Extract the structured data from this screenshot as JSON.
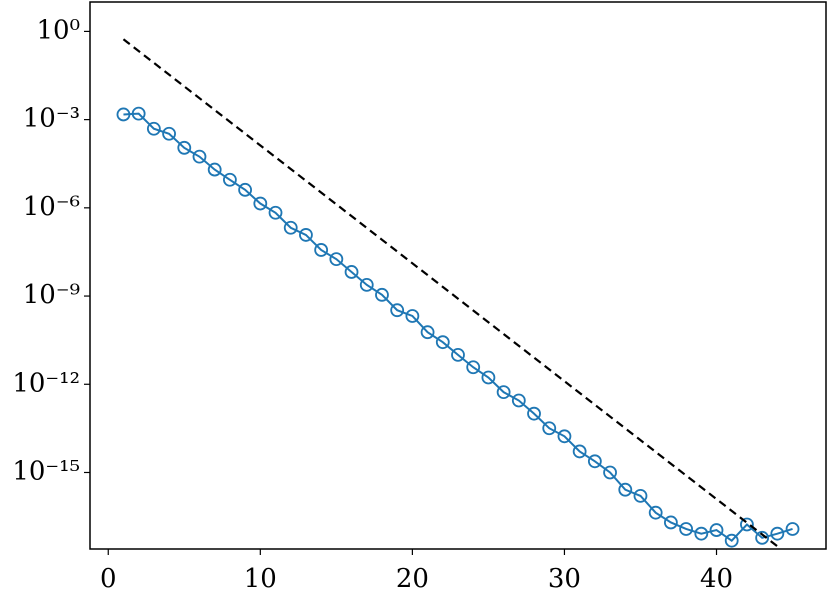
{
  "chart_data": {
    "type": "line",
    "log_y": true,
    "grid": false,
    "xlim": [
      -1.2,
      47.2
    ],
    "xticks": [
      0,
      10,
      20,
      30,
      40
    ],
    "ylim": [
      10,
      2.5e-18
    ],
    "yticks": [
      {
        "value": 1,
        "label": "10⁰"
      },
      {
        "value": 0.001,
        "label": "10⁻³"
      },
      {
        "value": 1e-06,
        "label": "10⁻⁶"
      },
      {
        "value": 1e-09,
        "label": "10⁻⁹"
      },
      {
        "value": 1e-12,
        "label": "10⁻¹²"
      },
      {
        "value": 1e-15,
        "label": "10⁻¹⁵"
      }
    ],
    "series": [
      {
        "color": "#1f77b4",
        "marker": "circle",
        "linestyle": "solid",
        "x": [
          1,
          2,
          3,
          4,
          5,
          6,
          7,
          8,
          9,
          10,
          11,
          12,
          13,
          14,
          15,
          16,
          17,
          18,
          19,
          20,
          21,
          22,
          23,
          24,
          25,
          26,
          27,
          28,
          29,
          30,
          31,
          32,
          33,
          34,
          35,
          36,
          37,
          38,
          39,
          40,
          41,
          42,
          43,
          44,
          45
        ],
        "values": [
          0.0015,
          0.0016,
          0.00049,
          0.00033,
          0.00011,
          5.5e-05,
          2e-05,
          9e-06,
          4.1e-06,
          1.4e-06,
          6.8e-07,
          2.1e-07,
          1.2e-07,
          3.7e-08,
          1.8e-08,
          6.6e-09,
          2.4e-09,
          1.1e-09,
          3.3e-10,
          2.1e-10,
          5.9e-11,
          2.7e-11,
          1e-11,
          3.8e-12,
          1.7e-12,
          5.4e-13,
          2.8e-13,
          1e-13,
          3.2e-14,
          1.7e-14,
          5.2e-15,
          2.4e-15,
          1e-15,
          2.6e-16,
          1.6e-16,
          4.3e-17,
          2e-17,
          1.2e-17,
          8.3e-18,
          1.1e-17,
          4.8e-18,
          1.7e-17,
          6e-18,
          8.3e-18,
          1.2e-17
        ]
      },
      {
        "color": "#000000",
        "marker": "none",
        "linestyle": "dashed",
        "x": [
          1,
          44
        ],
        "values": [
          0.54,
          3.1e-18
        ]
      }
    ]
  }
}
